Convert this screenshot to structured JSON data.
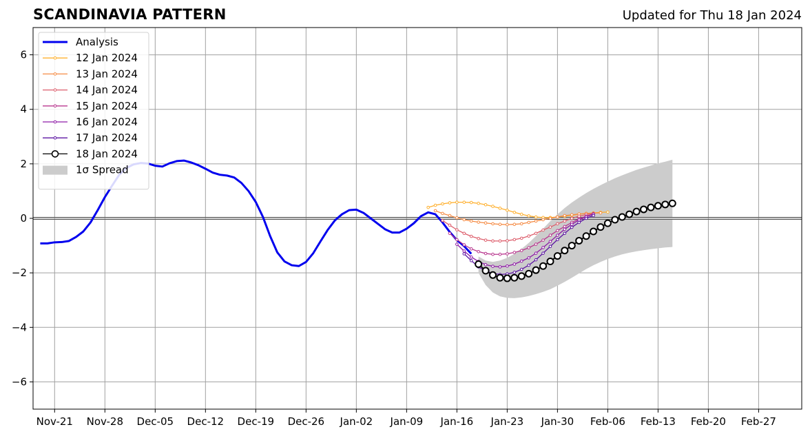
{
  "header": {
    "title": "SCANDINAVIA PATTERN",
    "updated": "Updated for Thu 18 Jan 2024"
  },
  "chart_data": {
    "type": "line",
    "title": "SCANDINAVIA PATTERN",
    "subtitle": "Updated for Thu 18 Jan 2024",
    "xlabel": "",
    "ylabel": "",
    "x_range": [
      "2023-11-18",
      "2024-03-04"
    ],
    "ylim": [
      -7,
      7
    ],
    "grid": true,
    "legend_position": "top-left",
    "x_ticks": [
      "Nov-21",
      "Nov-28",
      "Dec-05",
      "Dec-12",
      "Dec-19",
      "Dec-26",
      "Jan-02",
      "Jan-09",
      "Jan-16",
      "Jan-23",
      "Jan-30",
      "Feb-06",
      "Feb-13",
      "Feb-20",
      "Feb-27"
    ],
    "x_tick_dates": [
      "2023-11-21",
      "2023-11-28",
      "2023-12-05",
      "2023-12-12",
      "2023-12-19",
      "2023-12-26",
      "2024-01-02",
      "2024-01-09",
      "2024-01-16",
      "2024-01-23",
      "2024-01-30",
      "2024-02-06",
      "2024-02-13",
      "2024-02-20",
      "2024-02-27"
    ],
    "y_ticks": [
      -6,
      -4,
      -2,
      0,
      2,
      4,
      6
    ],
    "y_tick_labels": [
      "−6",
      "−4",
      "−2",
      "0",
      "2",
      "4",
      "6"
    ],
    "analysis": {
      "name": "Analysis",
      "color": "#0000ee",
      "start": "2023-11-19",
      "values": [
        -0.92,
        -0.92,
        -0.88,
        -0.87,
        -0.83,
        -0.68,
        -0.48,
        -0.15,
        0.3,
        0.78,
        1.2,
        1.6,
        1.85,
        1.98,
        2.03,
        2.01,
        1.93,
        1.9,
        2.02,
        2.1,
        2.12,
        2.05,
        1.95,
        1.82,
        1.68,
        1.6,
        1.57,
        1.5,
        1.3,
        1.0,
        0.6,
        0.05,
        -0.65,
        -1.25,
        -1.58,
        -1.72,
        -1.75,
        -1.6,
        -1.28,
        -0.85,
        -0.43,
        -0.08,
        0.15,
        0.3,
        0.32,
        0.2,
        0.0,
        -0.2,
        -0.4,
        -0.52,
        -0.52,
        -0.38,
        -0.18,
        0.08,
        0.22,
        0.15,
        -0.15,
        -0.5,
        -0.8,
        -1.02,
        -1.3
      ]
    },
    "forecasts": [
      {
        "name": "12 Jan 2024",
        "color": "#ffb02e",
        "start": "2024-01-12",
        "values": [
          0.4,
          0.48,
          0.53,
          0.57,
          0.59,
          0.59,
          0.58,
          0.55,
          0.5,
          0.44,
          0.37,
          0.3,
          0.22,
          0.15,
          0.09,
          0.05,
          0.03,
          0.03,
          0.05,
          0.08,
          0.11,
          0.15,
          0.18,
          0.2,
          0.22,
          0.23
        ]
      },
      {
        "name": "13 Jan 2024",
        "color": "#f58b44",
        "start": "2024-01-13",
        "values": [
          0.28,
          0.18,
          0.1,
          0.02,
          -0.05,
          -0.1,
          -0.14,
          -0.17,
          -0.2,
          -0.22,
          -0.23,
          -0.22,
          -0.2,
          -0.15,
          -0.1,
          -0.05,
          0.0,
          0.05,
          0.1,
          0.13,
          0.16,
          0.18,
          0.19,
          0.2
        ]
      },
      {
        "name": "14 Jan 2024",
        "color": "#dd5d6b",
        "start": "2024-01-14",
        "values": [
          -0.08,
          -0.25,
          -0.42,
          -0.55,
          -0.66,
          -0.74,
          -0.8,
          -0.83,
          -0.83,
          -0.82,
          -0.78,
          -0.73,
          -0.65,
          -0.55,
          -0.43,
          -0.32,
          -0.2,
          -0.1,
          0.0,
          0.08,
          0.14,
          0.18
        ]
      },
      {
        "name": "15 Jan 2024",
        "color": "#b8368e",
        "start": "2024-01-15",
        "values": [
          -0.55,
          -0.78,
          -0.97,
          -1.12,
          -1.22,
          -1.29,
          -1.32,
          -1.32,
          -1.3,
          -1.25,
          -1.18,
          -1.08,
          -0.95,
          -0.8,
          -0.62,
          -0.45,
          -0.3,
          -0.15,
          -0.02,
          0.08,
          0.16
        ]
      },
      {
        "name": "16 Jan 2024",
        "color": "#8e1aa6",
        "start": "2024-01-16",
        "values": [
          -0.95,
          -1.2,
          -1.42,
          -1.58,
          -1.7,
          -1.76,
          -1.78,
          -1.75,
          -1.68,
          -1.57,
          -1.45,
          -1.28,
          -1.07,
          -0.85,
          -0.62,
          -0.4,
          -0.22,
          -0.06,
          0.06,
          0.15
        ]
      },
      {
        "name": "17 Jan 2024",
        "color": "#5b13a2",
        "start": "2024-01-17",
        "values": [
          -1.3,
          -1.55,
          -1.78,
          -1.93,
          -2.02,
          -2.06,
          -2.04,
          -1.98,
          -1.87,
          -1.72,
          -1.52,
          -1.28,
          -1.03,
          -0.78,
          -0.55,
          -0.33,
          -0.15,
          0.0,
          0.1
        ]
      },
      {
        "name": "18 Jan 2024",
        "color": "#000000",
        "start": "2024-01-19",
        "values": [
          -1.68,
          -1.92,
          -2.08,
          -2.18,
          -2.2,
          -2.18,
          -2.12,
          -2.03,
          -1.9,
          -1.75,
          -1.58,
          -1.38,
          -1.18,
          -1.0,
          -0.82,
          -0.65,
          -0.48,
          -0.32,
          -0.18,
          -0.05,
          0.05,
          0.15,
          0.25,
          0.33,
          0.4,
          0.46,
          0.51,
          0.55
        ]
      }
    ],
    "spread": {
      "name": "1σ Spread",
      "color": "#cccccc",
      "start": "2024-01-19",
      "upper": [
        -1.4,
        -1.55,
        -1.6,
        -1.55,
        -1.45,
        -1.3,
        -1.12,
        -0.9,
        -0.65,
        -0.38,
        -0.1,
        0.15,
        0.38,
        0.58,
        0.76,
        0.93,
        1.08,
        1.22,
        1.35,
        1.47,
        1.58,
        1.68,
        1.78,
        1.86,
        1.94,
        2.02,
        2.08,
        2.15
      ],
      "lower": [
        -2.0,
        -2.45,
        -2.72,
        -2.86,
        -2.92,
        -2.93,
        -2.9,
        -2.85,
        -2.78,
        -2.7,
        -2.6,
        -2.47,
        -2.33,
        -2.18,
        -2.02,
        -1.86,
        -1.72,
        -1.6,
        -1.49,
        -1.4,
        -1.32,
        -1.26,
        -1.21,
        -1.17,
        -1.13,
        -1.1,
        -1.07,
        -1.05
      ]
    }
  }
}
